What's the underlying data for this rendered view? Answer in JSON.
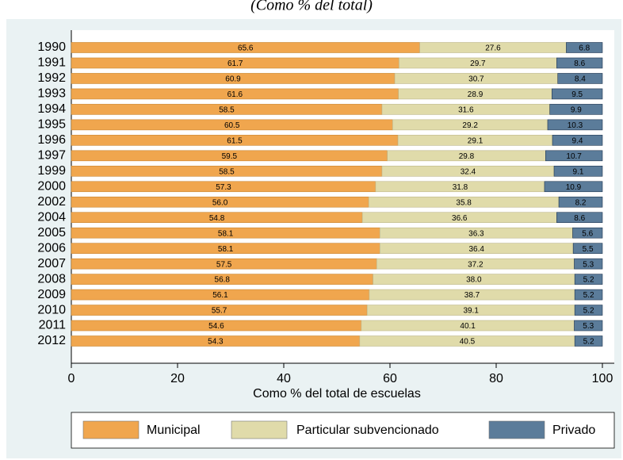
{
  "chart_data": {
    "type": "stacked-barh",
    "subtitle": "(Como % del total)",
    "xlabel": "Como % del total de escuelas",
    "categories": [
      "1990",
      "1991",
      "1992",
      "1993",
      "1994",
      "1995",
      "1996",
      "1997",
      "1999",
      "2000",
      "2002",
      "2004",
      "2005",
      "2006",
      "2007",
      "2008",
      "2009",
      "2010",
      "2011",
      "2012"
    ],
    "series": [
      {
        "name": "Municipal",
        "color": "#f0a64e",
        "values": [
          65.6,
          61.7,
          60.9,
          61.6,
          58.5,
          60.5,
          61.5,
          59.5,
          58.5,
          57.3,
          56.0,
          54.8,
          58.1,
          58.1,
          57.5,
          56.8,
          56.1,
          55.7,
          54.6,
          54.3
        ],
        "value_labels": [
          "65.6",
          "61.7",
          "60.9",
          "61.6",
          "58.5",
          "60.5",
          "61.5",
          "59.5",
          "58.5",
          "57.3",
          "56.0",
          "54.8",
          "58.1",
          "58.1",
          "57.5",
          "56.8",
          "56.1",
          "55.7",
          "54.6",
          "54.3"
        ]
      },
      {
        "name": "Particular subvencionado",
        "color": "#e0dbaa",
        "values": [
          27.6,
          29.7,
          30.7,
          28.9,
          31.6,
          29.2,
          29.1,
          29.8,
          32.4,
          31.8,
          35.8,
          36.6,
          36.3,
          36.4,
          37.2,
          38.0,
          38.7,
          39.1,
          40.1,
          40.5
        ],
        "value_labels": [
          "27.6",
          "29.7",
          "30.7",
          "28.9",
          "31.6",
          "29.2",
          "29.1",
          "29.8",
          "32.4",
          "31.8",
          "35.8",
          "36.6",
          "36.3",
          "36.4",
          "37.2",
          "38.0",
          "38.7",
          "39.1",
          "40.1",
          "40.5"
        ]
      },
      {
        "name": "Privado",
        "color": "#5b7c9a",
        "values": [
          6.8,
          8.6,
          8.4,
          9.5,
          9.9,
          10.3,
          9.4,
          10.7,
          9.1,
          10.9,
          8.2,
          8.6,
          5.6,
          5.5,
          5.3,
          5.2,
          5.2,
          5.2,
          5.3,
          5.2
        ],
        "value_labels": [
          "6.8",
          "8.6",
          "8.4",
          "9.5",
          "9.9",
          "10.3",
          "9.4",
          "10.7",
          "9.1",
          "10.9",
          "8.2",
          "8.6",
          "5.6",
          "5.5",
          "5.3",
          "5.2",
          "5.2",
          "5.2",
          "5.3",
          "5.2"
        ]
      }
    ],
    "xlim": [
      0,
      100
    ],
    "xticks": [
      0,
      20,
      40,
      60,
      80,
      100
    ],
    "legend": "bottom"
  }
}
